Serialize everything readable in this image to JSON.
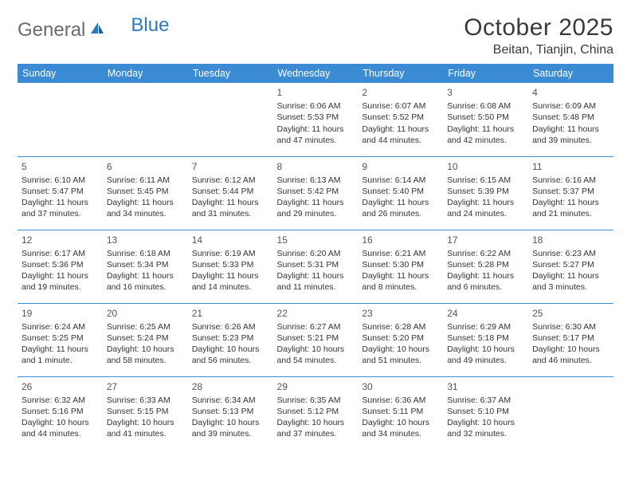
{
  "logo": {
    "general": "General",
    "blue": "Blue"
  },
  "title": "October 2025",
  "location": "Beitan, Tianjin, China",
  "colors": {
    "header_bg": "#3b8bd4",
    "header_text": "#ffffff",
    "border": "#3b8bd4",
    "text": "#333333",
    "logo_gray": "#6a6a6a",
    "logo_blue": "#2f78c2"
  },
  "day_headers": [
    "Sunday",
    "Monday",
    "Tuesday",
    "Wednesday",
    "Thursday",
    "Friday",
    "Saturday"
  ],
  "weeks": [
    [
      null,
      null,
      null,
      {
        "n": "1",
        "sr": "Sunrise: 6:06 AM",
        "ss": "Sunset: 5:53 PM",
        "dl": "Daylight: 11 hours and 47 minutes."
      },
      {
        "n": "2",
        "sr": "Sunrise: 6:07 AM",
        "ss": "Sunset: 5:52 PM",
        "dl": "Daylight: 11 hours and 44 minutes."
      },
      {
        "n": "3",
        "sr": "Sunrise: 6:08 AM",
        "ss": "Sunset: 5:50 PM",
        "dl": "Daylight: 11 hours and 42 minutes."
      },
      {
        "n": "4",
        "sr": "Sunrise: 6:09 AM",
        "ss": "Sunset: 5:48 PM",
        "dl": "Daylight: 11 hours and 39 minutes."
      }
    ],
    [
      {
        "n": "5",
        "sr": "Sunrise: 6:10 AM",
        "ss": "Sunset: 5:47 PM",
        "dl": "Daylight: 11 hours and 37 minutes."
      },
      {
        "n": "6",
        "sr": "Sunrise: 6:11 AM",
        "ss": "Sunset: 5:45 PM",
        "dl": "Daylight: 11 hours and 34 minutes."
      },
      {
        "n": "7",
        "sr": "Sunrise: 6:12 AM",
        "ss": "Sunset: 5:44 PM",
        "dl": "Daylight: 11 hours and 31 minutes."
      },
      {
        "n": "8",
        "sr": "Sunrise: 6:13 AM",
        "ss": "Sunset: 5:42 PM",
        "dl": "Daylight: 11 hours and 29 minutes."
      },
      {
        "n": "9",
        "sr": "Sunrise: 6:14 AM",
        "ss": "Sunset: 5:40 PM",
        "dl": "Daylight: 11 hours and 26 minutes."
      },
      {
        "n": "10",
        "sr": "Sunrise: 6:15 AM",
        "ss": "Sunset: 5:39 PM",
        "dl": "Daylight: 11 hours and 24 minutes."
      },
      {
        "n": "11",
        "sr": "Sunrise: 6:16 AM",
        "ss": "Sunset: 5:37 PM",
        "dl": "Daylight: 11 hours and 21 minutes."
      }
    ],
    [
      {
        "n": "12",
        "sr": "Sunrise: 6:17 AM",
        "ss": "Sunset: 5:36 PM",
        "dl": "Daylight: 11 hours and 19 minutes."
      },
      {
        "n": "13",
        "sr": "Sunrise: 6:18 AM",
        "ss": "Sunset: 5:34 PM",
        "dl": "Daylight: 11 hours and 16 minutes."
      },
      {
        "n": "14",
        "sr": "Sunrise: 6:19 AM",
        "ss": "Sunset: 5:33 PM",
        "dl": "Daylight: 11 hours and 14 minutes."
      },
      {
        "n": "15",
        "sr": "Sunrise: 6:20 AM",
        "ss": "Sunset: 5:31 PM",
        "dl": "Daylight: 11 hours and 11 minutes."
      },
      {
        "n": "16",
        "sr": "Sunrise: 6:21 AM",
        "ss": "Sunset: 5:30 PM",
        "dl": "Daylight: 11 hours and 8 minutes."
      },
      {
        "n": "17",
        "sr": "Sunrise: 6:22 AM",
        "ss": "Sunset: 5:28 PM",
        "dl": "Daylight: 11 hours and 6 minutes."
      },
      {
        "n": "18",
        "sr": "Sunrise: 6:23 AM",
        "ss": "Sunset: 5:27 PM",
        "dl": "Daylight: 11 hours and 3 minutes."
      }
    ],
    [
      {
        "n": "19",
        "sr": "Sunrise: 6:24 AM",
        "ss": "Sunset: 5:25 PM",
        "dl": "Daylight: 11 hours and 1 minute."
      },
      {
        "n": "20",
        "sr": "Sunrise: 6:25 AM",
        "ss": "Sunset: 5:24 PM",
        "dl": "Daylight: 10 hours and 58 minutes."
      },
      {
        "n": "21",
        "sr": "Sunrise: 6:26 AM",
        "ss": "Sunset: 5:23 PM",
        "dl": "Daylight: 10 hours and 56 minutes."
      },
      {
        "n": "22",
        "sr": "Sunrise: 6:27 AM",
        "ss": "Sunset: 5:21 PM",
        "dl": "Daylight: 10 hours and 54 minutes."
      },
      {
        "n": "23",
        "sr": "Sunrise: 6:28 AM",
        "ss": "Sunset: 5:20 PM",
        "dl": "Daylight: 10 hours and 51 minutes."
      },
      {
        "n": "24",
        "sr": "Sunrise: 6:29 AM",
        "ss": "Sunset: 5:18 PM",
        "dl": "Daylight: 10 hours and 49 minutes."
      },
      {
        "n": "25",
        "sr": "Sunrise: 6:30 AM",
        "ss": "Sunset: 5:17 PM",
        "dl": "Daylight: 10 hours and 46 minutes."
      }
    ],
    [
      {
        "n": "26",
        "sr": "Sunrise: 6:32 AM",
        "ss": "Sunset: 5:16 PM",
        "dl": "Daylight: 10 hours and 44 minutes."
      },
      {
        "n": "27",
        "sr": "Sunrise: 6:33 AM",
        "ss": "Sunset: 5:15 PM",
        "dl": "Daylight: 10 hours and 41 minutes."
      },
      {
        "n": "28",
        "sr": "Sunrise: 6:34 AM",
        "ss": "Sunset: 5:13 PM",
        "dl": "Daylight: 10 hours and 39 minutes."
      },
      {
        "n": "29",
        "sr": "Sunrise: 6:35 AM",
        "ss": "Sunset: 5:12 PM",
        "dl": "Daylight: 10 hours and 37 minutes."
      },
      {
        "n": "30",
        "sr": "Sunrise: 6:36 AM",
        "ss": "Sunset: 5:11 PM",
        "dl": "Daylight: 10 hours and 34 minutes."
      },
      {
        "n": "31",
        "sr": "Sunrise: 6:37 AM",
        "ss": "Sunset: 5:10 PM",
        "dl": "Daylight: 10 hours and 32 minutes."
      },
      null
    ]
  ]
}
